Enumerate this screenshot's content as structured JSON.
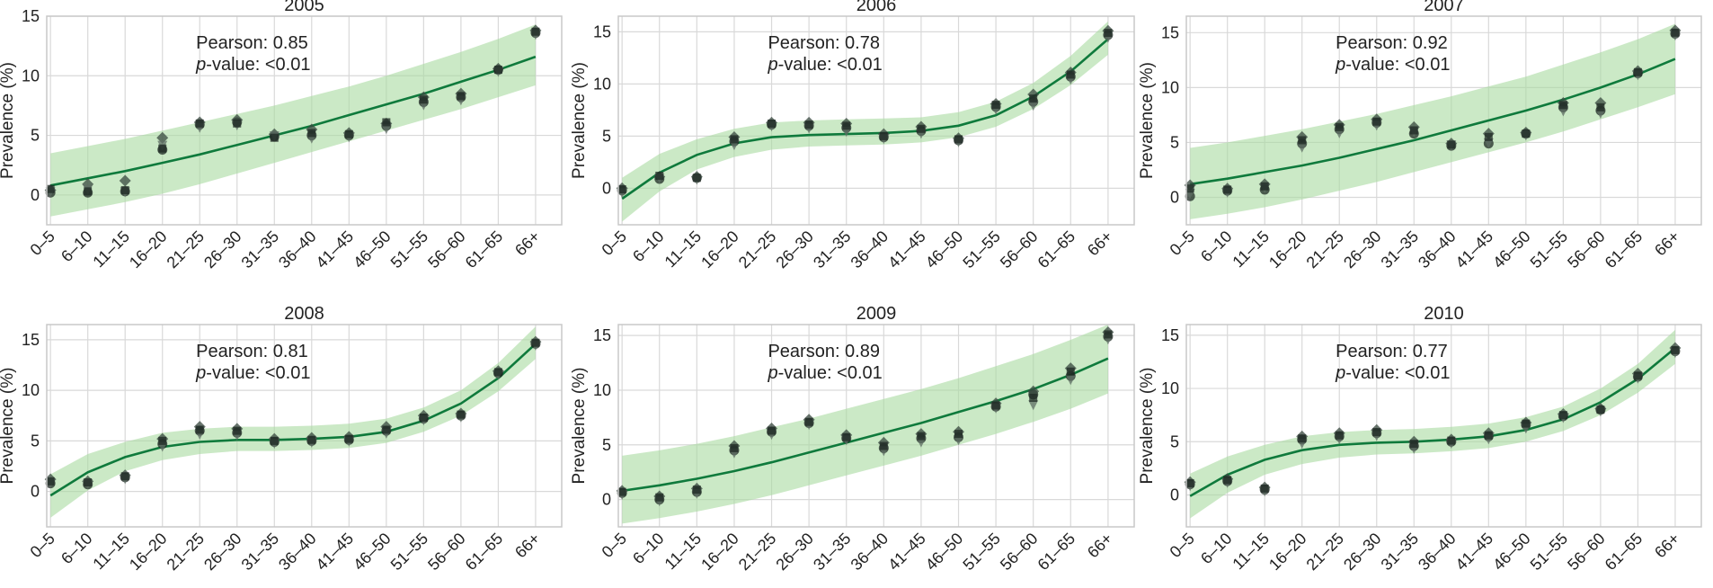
{
  "figure": {
    "colors": {
      "line": "#0f7a3c",
      "band": "#a8dba0",
      "grid": "#d9d9d9",
      "spine": "#c8c8c8",
      "marker_dark": "#1f2a24",
      "marker_mid": "#3a4a40",
      "marker_light": "#5f6e64"
    }
  },
  "chart_data": [
    {
      "type": "line",
      "title": "2005",
      "ylabel": "Prevalence (%)",
      "xlabel": "",
      "categories": [
        "0–5",
        "6–10",
        "11–15",
        "16–20",
        "21–25",
        "26–30",
        "31–35",
        "36–40",
        "41–45",
        "46–50",
        "51–55",
        "56–60",
        "61–65",
        "66+"
      ],
      "ylim": [
        -2.5,
        15
      ],
      "yticks": [
        0,
        5,
        10,
        15
      ],
      "grid": true,
      "annotation": {
        "line1": "Pearson: 0.85",
        "line2_italic": "p",
        "line2_rest": "-value: <0.01"
      },
      "fit": [
        0.8,
        1.4,
        2.0,
        2.7,
        3.4,
        4.2,
        5.0,
        5.8,
        6.7,
        7.6,
        8.5,
        9.5,
        10.5,
        11.6
      ],
      "band_low": [
        -1.8,
        -1.2,
        -0.6,
        0.1,
        0.9,
        1.8,
        2.7,
        3.6,
        4.5,
        5.4,
        6.3,
        7.2,
        8.2,
        9.2
      ],
      "band_high": [
        3.5,
        4.1,
        4.7,
        5.4,
        6.1,
        6.8,
        7.5,
        8.3,
        9.1,
        10.0,
        11.0,
        12.0,
        13.1,
        14.3
      ],
      "points": [
        [
          0.2,
          0.4,
          0.3,
          0.5
        ],
        [
          0.2,
          0.9,
          0.5,
          0.3
        ],
        [
          0.3,
          1.2,
          0.3,
          0.4
        ],
        [
          3.8,
          4.8,
          4.2,
          3.9
        ],
        [
          5.9,
          6.1,
          5.7,
          6.0
        ],
        [
          6.1,
          6.3,
          5.9,
          6.0
        ],
        [
          4.9,
          5.1,
          5.0,
          4.8
        ],
        [
          5.0,
          5.5,
          4.8,
          5.2
        ],
        [
          5.0,
          5.2,
          4.9,
          5.1
        ],
        [
          5.8,
          6.0,
          5.6,
          6.1
        ],
        [
          7.8,
          8.2,
          7.6,
          8.0
        ],
        [
          8.2,
          8.5,
          8.0,
          8.3
        ],
        [
          10.5,
          10.6,
          10.4,
          10.5
        ],
        [
          13.6,
          13.8,
          13.5,
          13.7
        ]
      ]
    },
    {
      "type": "line",
      "title": "2006",
      "ylabel": "Prevalence (%)",
      "xlabel": "",
      "categories": [
        "0–5",
        "6–10",
        "11–15",
        "16–20",
        "21–25",
        "26–30",
        "31–35",
        "36–40",
        "41–45",
        "46–50",
        "51–55",
        "56–60",
        "61–65",
        "66+"
      ],
      "ylim": [
        -3.5,
        16.5
      ],
      "yticks": [
        0,
        5,
        10,
        15
      ],
      "grid": true,
      "annotation": {
        "line1": "Pearson: 0.78",
        "line2_italic": "p",
        "line2_rest": "-value: <0.01"
      },
      "fit": [
        -1.0,
        1.5,
        3.2,
        4.3,
        4.9,
        5.1,
        5.2,
        5.3,
        5.5,
        6.0,
        7.0,
        8.8,
        11.2,
        14.3
      ],
      "band_low": [
        -3.2,
        -0.3,
        1.8,
        3.0,
        3.7,
        4.0,
        4.1,
        4.2,
        4.4,
        4.9,
        5.9,
        7.6,
        9.9,
        12.8
      ],
      "band_high": [
        1.0,
        3.3,
        4.7,
        5.7,
        6.3,
        6.5,
        6.6,
        6.7,
        6.8,
        7.3,
        8.3,
        10.1,
        12.7,
        16.0
      ],
      "points": [
        [
          -0.2,
          0.0,
          -0.4,
          -0.1
        ],
        [
          0.9,
          1.1,
          1.0,
          1.2
        ],
        [
          1.0,
          1.1,
          0.9,
          1.0
        ],
        [
          4.5,
          4.9,
          4.2,
          4.7
        ],
        [
          6.1,
          6.3,
          6.0,
          6.2
        ],
        [
          6.0,
          6.3,
          5.8,
          6.1
        ],
        [
          5.8,
          6.2,
          5.5,
          6.0
        ],
        [
          4.9,
          5.2,
          4.8,
          5.0
        ],
        [
          5.5,
          5.9,
          5.3,
          5.7
        ],
        [
          4.6,
          4.8,
          4.5,
          4.7
        ],
        [
          7.8,
          8.1,
          7.6,
          8.0
        ],
        [
          8.3,
          9.0,
          8.0,
          8.6
        ],
        [
          10.7,
          11.1,
          10.5,
          10.9
        ],
        [
          14.7,
          15.1,
          14.5,
          14.9
        ]
      ]
    },
    {
      "type": "line",
      "title": "2007",
      "ylabel": "Prevalence (%)",
      "xlabel": "",
      "categories": [
        "0–5",
        "6–10",
        "11–15",
        "16–20",
        "21–25",
        "26–30",
        "31–35",
        "36–40",
        "41–45",
        "46–50",
        "51–55",
        "56–60",
        "61–65",
        "66+"
      ],
      "ylim": [
        -2.5,
        16.5
      ],
      "yticks": [
        0,
        5,
        10,
        15
      ],
      "grid": true,
      "annotation": {
        "line1": "Pearson: 0.92",
        "line2_italic": "p",
        "line2_rest": "-value: <0.01"
      },
      "fit": [
        1.2,
        1.7,
        2.3,
        2.9,
        3.6,
        4.4,
        5.2,
        6.1,
        7.0,
        7.9,
        8.9,
        10.0,
        11.2,
        12.6
      ],
      "band_low": [
        -2.0,
        -1.5,
        -0.9,
        -0.2,
        0.6,
        1.4,
        2.3,
        3.2,
        4.1,
        5.0,
        6.0,
        7.1,
        8.2,
        9.4
      ],
      "band_high": [
        4.5,
        5.0,
        5.6,
        6.2,
        6.9,
        7.6,
        8.4,
        9.2,
        10.1,
        11.0,
        12.1,
        13.2,
        14.4,
        15.8
      ],
      "points": [
        [
          0.1,
          1.1,
          0.4,
          0.8
        ],
        [
          0.6,
          0.8,
          0.5,
          0.7
        ],
        [
          0.7,
          1.2,
          0.9,
          1.0
        ],
        [
          4.9,
          5.5,
          4.6,
          5.2
        ],
        [
          6.2,
          6.6,
          5.9,
          6.4
        ],
        [
          6.8,
          7.1,
          6.6,
          6.9
        ],
        [
          5.8,
          6.4,
          6.0,
          6.1
        ],
        [
          4.7,
          4.9,
          4.8,
          4.8
        ],
        [
          4.9,
          5.8,
          5.0,
          5.5
        ],
        [
          5.8,
          5.9,
          5.7,
          5.8
        ],
        [
          8.2,
          8.6,
          7.9,
          8.4
        ],
        [
          7.9,
          8.6,
          7.7,
          8.2
        ],
        [
          11.3,
          11.5,
          11.2,
          11.4
        ],
        [
          14.9,
          15.2,
          14.8,
          15.0
        ]
      ]
    },
    {
      "type": "line",
      "title": "2008",
      "ylabel": "Prevalence (%)",
      "xlabel": "",
      "categories": [
        "0–5",
        "6–10",
        "11–15",
        "16–20",
        "21–25",
        "26–30",
        "31–35",
        "36–40",
        "41–45",
        "46–50",
        "51–55",
        "56–60",
        "61–65",
        "66+"
      ],
      "ylim": [
        -3.5,
        16.5
      ],
      "yticks": [
        0,
        5,
        10,
        15
      ],
      "grid": true,
      "annotation": {
        "line1": "Pearson: 0.81",
        "line2_italic": "p",
        "line2_rest": "-value: <0.01"
      },
      "fit": [
        -0.4,
        1.9,
        3.4,
        4.4,
        4.9,
        5.1,
        5.1,
        5.2,
        5.4,
        5.9,
        7.0,
        8.7,
        11.2,
        14.6
      ],
      "band_low": [
        -2.6,
        0.1,
        2.0,
        3.1,
        3.7,
        4.0,
        4.0,
        4.1,
        4.3,
        4.8,
        5.9,
        7.5,
        9.9,
        13.1
      ],
      "band_high": [
        1.7,
        3.7,
        4.9,
        5.8,
        6.2,
        6.4,
        6.4,
        6.5,
        6.7,
        7.2,
        8.3,
        10.0,
        12.7,
        16.3
      ],
      "points": [
        [
          0.8,
          1.2,
          0.9,
          1.0
        ],
        [
          0.7,
          1.0,
          0.8,
          0.9
        ],
        [
          1.4,
          1.6,
          1.3,
          1.5
        ],
        [
          4.7,
          5.2,
          4.5,
          5.0
        ],
        [
          6.0,
          6.4,
          5.7,
          6.1
        ],
        [
          5.8,
          6.2,
          5.6,
          6.0
        ],
        [
          4.9,
          5.2,
          4.8,
          5.0
        ],
        [
          5.0,
          5.3,
          4.9,
          5.1
        ],
        [
          5.1,
          5.4,
          5.0,
          5.2
        ],
        [
          6.0,
          6.4,
          5.8,
          6.1
        ],
        [
          7.2,
          7.5,
          7.1,
          7.3
        ],
        [
          7.5,
          7.7,
          7.4,
          7.6
        ],
        [
          11.7,
          11.9,
          11.6,
          11.8
        ],
        [
          14.6,
          14.8,
          14.5,
          14.7
        ]
      ]
    },
    {
      "type": "line",
      "title": "2009",
      "ylabel": "Prevalence (%)",
      "xlabel": "",
      "categories": [
        "0–5",
        "6–10",
        "11–15",
        "16–20",
        "21–25",
        "26–30",
        "31–35",
        "36–40",
        "41–45",
        "46–50",
        "51–55",
        "56–60",
        "61–65",
        "66+"
      ],
      "ylim": [
        -2.5,
        16
      ],
      "yticks": [
        0,
        5,
        10,
        15
      ],
      "grid": true,
      "annotation": {
        "line1": "Pearson: 0.89",
        "line2_italic": "p",
        "line2_rest": "-value: <0.01"
      },
      "fit": [
        0.8,
        1.3,
        1.9,
        2.6,
        3.4,
        4.3,
        5.2,
        6.1,
        7.0,
        8.0,
        9.0,
        10.1,
        11.4,
        12.9
      ],
      "band_low": [
        -2.2,
        -1.7,
        -1.1,
        -0.4,
        0.4,
        1.3,
        2.2,
        3.1,
        4.0,
        5.0,
        6.0,
        7.1,
        8.3,
        9.7
      ],
      "band_high": [
        4.0,
        4.5,
        5.1,
        5.8,
        6.6,
        7.4,
        8.3,
        9.2,
        10.1,
        11.1,
        12.2,
        13.3,
        14.6,
        16.0
      ],
      "points": [
        [
          0.6,
          0.8,
          0.5,
          0.7
        ],
        [
          0.0,
          0.3,
          -0.1,
          0.2
        ],
        [
          0.7,
          1.0,
          0.6,
          0.9
        ],
        [
          4.5,
          4.9,
          4.3,
          4.7
        ],
        [
          6.2,
          6.5,
          6.0,
          6.3
        ],
        [
          7.0,
          7.3,
          6.9,
          7.1
        ],
        [
          5.6,
          5.9,
          5.5,
          5.7
        ],
        [
          4.7,
          5.2,
          4.5,
          4.9
        ],
        [
          5.6,
          6.0,
          5.3,
          5.8
        ],
        [
          5.7,
          6.2,
          5.5,
          6.0
        ],
        [
          8.5,
          8.8,
          8.4,
          8.6
        ],
        [
          9.6,
          9.9,
          8.7,
          9.3
        ],
        [
          11.3,
          12.0,
          11.0,
          11.7
        ],
        [
          14.9,
          15.3,
          14.7,
          15.1
        ]
      ]
    },
    {
      "type": "line",
      "title": "2010",
      "ylabel": "Prevalence (%)",
      "xlabel": "",
      "categories": [
        "0–5",
        "6–10",
        "11–15",
        "16–20",
        "21–25",
        "26–30",
        "31–35",
        "36–40",
        "41–45",
        "46–50",
        "51–55",
        "56–60",
        "61–65",
        "66+"
      ],
      "ylim": [
        -3,
        16
      ],
      "yticks": [
        0,
        5,
        10,
        15
      ],
      "grid": true,
      "annotation": {
        "line1": "Pearson: 0.77",
        "line2_italic": "p",
        "line2_rest": "-value: <0.01"
      },
      "fit": [
        -0.1,
        1.9,
        3.3,
        4.2,
        4.7,
        4.9,
        5.0,
        5.2,
        5.5,
        6.1,
        7.1,
        8.7,
        10.9,
        13.8
      ],
      "band_low": [
        -2.2,
        0.2,
        1.9,
        2.9,
        3.5,
        3.8,
        3.9,
        4.1,
        4.4,
        5.0,
        6.0,
        7.5,
        9.6,
        12.3
      ],
      "band_high": [
        2.0,
        3.6,
        4.7,
        5.5,
        5.9,
        6.1,
        6.2,
        6.4,
        6.7,
        7.3,
        8.3,
        10.0,
        12.3,
        15.5
      ],
      "points": [
        [
          1.0,
          1.2,
          0.9,
          1.1
        ],
        [
          1.3,
          1.5,
          1.2,
          1.4
        ],
        [
          0.5,
          0.7,
          0.4,
          0.6
        ],
        [
          5.2,
          5.5,
          4.9,
          5.3
        ],
        [
          5.5,
          5.8,
          5.3,
          5.6
        ],
        [
          5.8,
          6.1,
          5.6,
          5.9
        ],
        [
          4.6,
          5.0,
          4.4,
          4.8
        ],
        [
          5.0,
          5.2,
          4.9,
          5.1
        ],
        [
          5.5,
          5.8,
          5.3,
          5.6
        ],
        [
          6.6,
          6.8,
          6.3,
          6.7
        ],
        [
          7.4,
          7.6,
          7.3,
          7.5
        ],
        [
          8.0,
          8.1,
          7.9,
          8.0
        ],
        [
          11.1,
          11.4,
          11.0,
          11.2
        ],
        [
          13.5,
          13.8,
          13.4,
          13.6
        ]
      ]
    }
  ]
}
